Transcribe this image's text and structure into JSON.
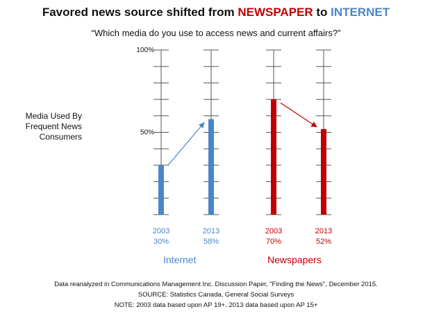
{
  "title": {
    "prefix": "Favored news source shifted from ",
    "newspaper": "NEWSPAPER",
    "middle": " to ",
    "internet": "INTERNET"
  },
  "colors": {
    "internet": "#4a86c8",
    "newspaper": "#c00000"
  },
  "chart_data": {
    "type": "bar",
    "title": "Favored news source shifted from NEWSPAPER to INTERNET",
    "subtitle": "“Which media do you use to access news and current affairs?”",
    "ylabel": "Media Used By Frequent News Consumers",
    "ylim": [
      0,
      100
    ],
    "ytick_labels": [
      "100%",
      "50%"
    ],
    "ytick_values": [
      100,
      50
    ],
    "grid": false,
    "groups": [
      {
        "name": "Internet",
        "bars": [
          {
            "year": "2003",
            "value": 30,
            "label": "30%"
          },
          {
            "year": "2013",
            "value": 58,
            "label": "58%"
          }
        ]
      },
      {
        "name": "Newspapers",
        "bars": [
          {
            "year": "2003",
            "value": 70,
            "label": "70%"
          },
          {
            "year": "2013",
            "value": 52,
            "label": "52%"
          }
        ]
      }
    ]
  },
  "footer": {
    "line1": "Data reanalyzed in Communications Management Inc. Discussion Paper, \"Finding the News\", December 2015.",
    "line2": "SOURCE: Statistics Canada, General Social Surveys",
    "line3": "NOTE: 2003 data based upon AP 19+. 2013 data based upon AP 15+"
  }
}
